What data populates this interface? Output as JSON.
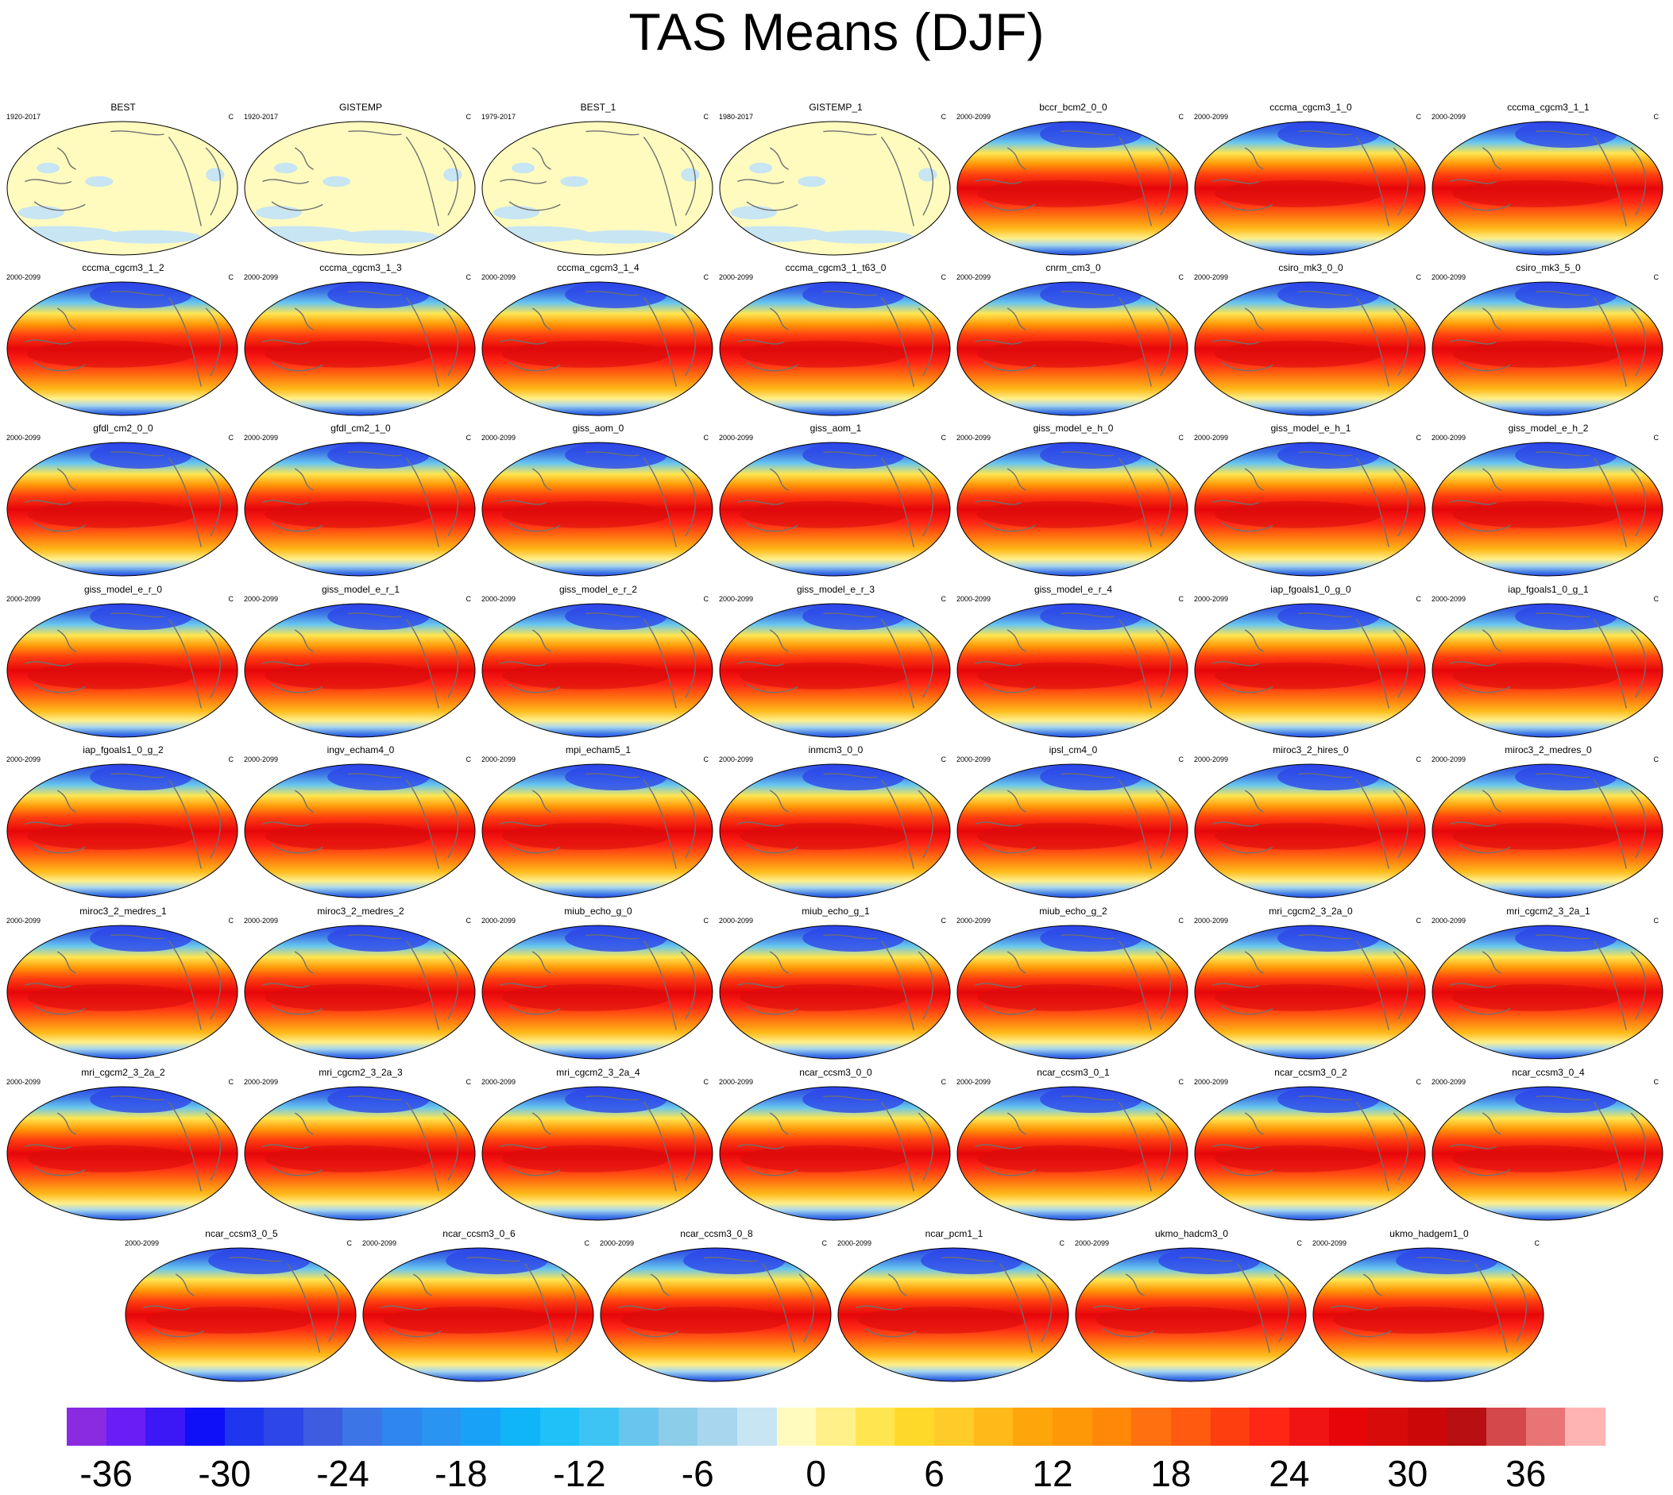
{
  "title": "TAS Means (DJF)",
  "units": "C",
  "panels": [
    {
      "name": "BEST",
      "period": "1920-2017",
      "type": "obs"
    },
    {
      "name": "GISTEMP",
      "period": "1920-2017",
      "type": "obs"
    },
    {
      "name": "BEST_1",
      "period": "1979-2017",
      "type": "obs"
    },
    {
      "name": "GISTEMP_1",
      "period": "1980-2017",
      "type": "obs"
    },
    {
      "name": "bccr_bcm2_0_0",
      "period": "2000-2099",
      "type": "model"
    },
    {
      "name": "cccma_cgcm3_1_0",
      "period": "2000-2099",
      "type": "model"
    },
    {
      "name": "cccma_cgcm3_1_1",
      "period": "2000-2099",
      "type": "model"
    },
    {
      "name": "cccma_cgcm3_1_2",
      "period": "2000-2099",
      "type": "model"
    },
    {
      "name": "cccma_cgcm3_1_3",
      "period": "2000-2099",
      "type": "model"
    },
    {
      "name": "cccma_cgcm3_1_4",
      "period": "2000-2099",
      "type": "model"
    },
    {
      "name": "cccma_cgcm3_1_t63_0",
      "period": "2000-2099",
      "type": "model"
    },
    {
      "name": "cnrm_cm3_0",
      "period": "2000-2099",
      "type": "model"
    },
    {
      "name": "csiro_mk3_0_0",
      "period": "2000-2099",
      "type": "model"
    },
    {
      "name": "csiro_mk3_5_0",
      "period": "2000-2099",
      "type": "model"
    },
    {
      "name": "gfdl_cm2_0_0",
      "period": "2000-2099",
      "type": "model"
    },
    {
      "name": "gfdl_cm2_1_0",
      "period": "2000-2099",
      "type": "model"
    },
    {
      "name": "giss_aom_0",
      "period": "2000-2099",
      "type": "model"
    },
    {
      "name": "giss_aom_1",
      "period": "2000-2099",
      "type": "model"
    },
    {
      "name": "giss_model_e_h_0",
      "period": "2000-2099",
      "type": "model"
    },
    {
      "name": "giss_model_e_h_1",
      "period": "2000-2099",
      "type": "model"
    },
    {
      "name": "giss_model_e_h_2",
      "period": "2000-2099",
      "type": "model"
    },
    {
      "name": "giss_model_e_r_0",
      "period": "2000-2099",
      "type": "model"
    },
    {
      "name": "giss_model_e_r_1",
      "period": "2000-2099",
      "type": "model"
    },
    {
      "name": "giss_model_e_r_2",
      "period": "2000-2099",
      "type": "model"
    },
    {
      "name": "giss_model_e_r_3",
      "period": "2000-2099",
      "type": "model"
    },
    {
      "name": "giss_model_e_r_4",
      "period": "2000-2099",
      "type": "model"
    },
    {
      "name": "iap_fgoals1_0_g_0",
      "period": "2000-2099",
      "type": "model"
    },
    {
      "name": "iap_fgoals1_0_g_1",
      "period": "2000-2099",
      "type": "model"
    },
    {
      "name": "iap_fgoals1_0_g_2",
      "period": "2000-2099",
      "type": "model"
    },
    {
      "name": "ingv_echam4_0",
      "period": "2000-2099",
      "type": "model"
    },
    {
      "name": "mpi_echam5_1",
      "period": "2000-2099",
      "type": "model"
    },
    {
      "name": "inmcm3_0_0",
      "period": "2000-2099",
      "type": "model"
    },
    {
      "name": "ipsl_cm4_0",
      "period": "2000-2099",
      "type": "model"
    },
    {
      "name": "miroc3_2_hires_0",
      "period": "2000-2099",
      "type": "model"
    },
    {
      "name": "miroc3_2_medres_0",
      "period": "2000-2099",
      "type": "model"
    },
    {
      "name": "miroc3_2_medres_1",
      "period": "2000-2099",
      "type": "model"
    },
    {
      "name": "miroc3_2_medres_2",
      "period": "2000-2099",
      "type": "model"
    },
    {
      "name": "miub_echo_g_0",
      "period": "2000-2099",
      "type": "model"
    },
    {
      "name": "miub_echo_g_1",
      "period": "2000-2099",
      "type": "model"
    },
    {
      "name": "miub_echo_g_2",
      "period": "2000-2099",
      "type": "model"
    },
    {
      "name": "mri_cgcm2_3_2a_0",
      "period": "2000-2099",
      "type": "model"
    },
    {
      "name": "mri_cgcm2_3_2a_1",
      "period": "2000-2099",
      "type": "model"
    },
    {
      "name": "mri_cgcm2_3_2a_2",
      "period": "2000-2099",
      "type": "model"
    },
    {
      "name": "mri_cgcm2_3_2a_3",
      "period": "2000-2099",
      "type": "model"
    },
    {
      "name": "mri_cgcm2_3_2a_4",
      "period": "2000-2099",
      "type": "model"
    },
    {
      "name": "ncar_ccsm3_0_0",
      "period": "2000-2099",
      "type": "model"
    },
    {
      "name": "ncar_ccsm3_0_1",
      "period": "2000-2099",
      "type": "model"
    },
    {
      "name": "ncar_ccsm3_0_2",
      "period": "2000-2099",
      "type": "model"
    },
    {
      "name": "ncar_ccsm3_0_4",
      "period": "2000-2099",
      "type": "model"
    },
    {
      "name": "ncar_ccsm3_0_5",
      "period": "2000-2099",
      "type": "model"
    },
    {
      "name": "ncar_ccsm3_0_6",
      "period": "2000-2099",
      "type": "model"
    },
    {
      "name": "ncar_ccsm3_0_8",
      "period": "2000-2099",
      "type": "model"
    },
    {
      "name": "ncar_pcm1_1",
      "period": "2000-2099",
      "type": "model"
    },
    {
      "name": "ukmo_hadcm3_0",
      "period": "2000-2099",
      "type": "model"
    },
    {
      "name": "ukmo_hadgem1_0",
      "period": "2000-2099",
      "type": "model"
    }
  ],
  "chart_data": {
    "type": "heatmap",
    "title": "TAS Means (DJF)",
    "variable": "TAS",
    "season": "DJF",
    "units": "C",
    "colorbar": {
      "levels": [
        -40,
        -38,
        -36,
        -34,
        -32,
        -30,
        -28,
        -26,
        -24,
        -22,
        -20,
        -18,
        -16,
        -14,
        -12,
        -10,
        -8,
        -6,
        -4,
        -2,
        0,
        2,
        4,
        6,
        8,
        10,
        12,
        14,
        16,
        18,
        20,
        22,
        24,
        26,
        28,
        30,
        32,
        34,
        36,
        38,
        40,
        42,
        44
      ],
      "tick_labels": [
        "-36",
        "-30",
        "-24",
        "-18",
        "-12",
        "-6",
        "0",
        "6",
        "12",
        "18",
        "24",
        "30",
        "36"
      ],
      "tick_values": [
        -36,
        -30,
        -24,
        -18,
        -12,
        -6,
        0,
        6,
        12,
        18,
        24,
        30,
        36
      ],
      "colors": [
        "#8a2be2",
        "#6a1ef5",
        "#3b18f5",
        "#0f0ff8",
        "#1e36ee",
        "#2d46e8",
        "#3d5ce0",
        "#3c76e6",
        "#2f86ee",
        "#2a94f2",
        "#18a2f7",
        "#10b4f8",
        "#1ec2f9",
        "#3dc4f4",
        "#68c6ee",
        "#8ccde9",
        "#a7d6ee",
        "#c7e5f3",
        "#fffbbf",
        "#fff08a",
        "#ffe650",
        "#ffd92a",
        "#ffcb28",
        "#ffba1a",
        "#ffa50c",
        "#ff9807",
        "#ff8808",
        "#ff7010",
        "#ff5a10",
        "#ff3e10",
        "#ff2616",
        "#f01414",
        "#e6060a",
        "#d80b0b",
        "#cc0707",
        "#b70f12",
        "#d4474a",
        "#e87476",
        "#ffb4b4"
      ]
    },
    "panel_rows": 8,
    "panel_cols": 7
  }
}
